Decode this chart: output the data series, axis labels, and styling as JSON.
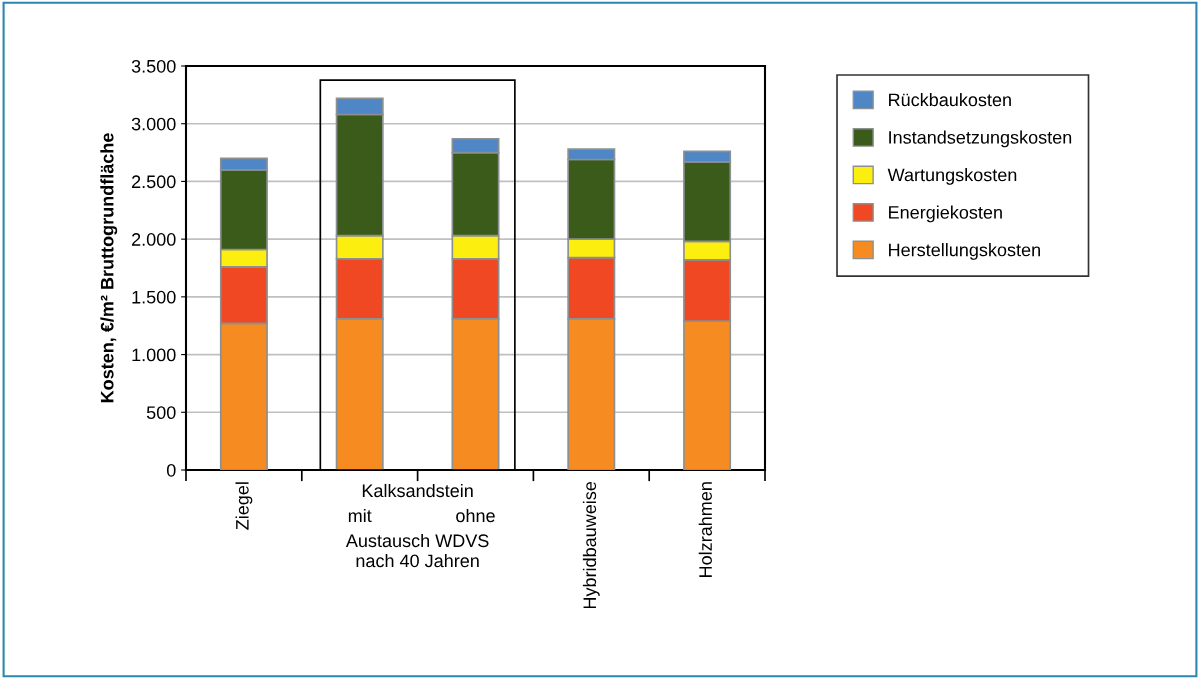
{
  "chart_data": {
    "type": "bar",
    "stacked": true,
    "ylabel": "Kosten, €/m² Bruttogrundfläche",
    "categories": [
      "Ziegel",
      "mit",
      "ohne",
      "Hybridbauweise",
      "Holzrahmen"
    ],
    "series": [
      {
        "name": "Herstellungskosten",
        "color": "#f58b21",
        "values": [
          1270,
          1310,
          1310,
          1310,
          1290
        ]
      },
      {
        "name": "Energiekosten",
        "color": "#ef4823",
        "values": [
          490,
          520,
          520,
          530,
          530
        ]
      },
      {
        "name": "Wartungskosten",
        "color": "#fcee0e",
        "values": [
          150,
          200,
          200,
          160,
          160
        ]
      },
      {
        "name": "Instandsetzungskosten",
        "color": "#3a5b1a",
        "values": [
          690,
          1050,
          720,
          690,
          690
        ]
      },
      {
        "name": "Rückbaukosten",
        "color": "#4f86c6",
        "values": [
          100,
          140,
          120,
          90,
          90
        ]
      }
    ],
    "ylim": [
      0,
      3500
    ],
    "yticks": [
      {
        "value": 0,
        "label": "0"
      },
      {
        "value": 500,
        "label": "500"
      },
      {
        "value": 1000,
        "label": "1.000"
      },
      {
        "value": 1500,
        "label": "1.500"
      },
      {
        "value": 2000,
        "label": "2.000"
      },
      {
        "value": 2500,
        "label": "2.500"
      },
      {
        "value": 3000,
        "label": "3.000"
      },
      {
        "value": 3500,
        "label": "3.500"
      }
    ],
    "grid": "y",
    "legend": "right",
    "annotations": [
      "Kalksandstein",
      "Austausch WDVS\nnach 40 Jahren"
    ]
  }
}
